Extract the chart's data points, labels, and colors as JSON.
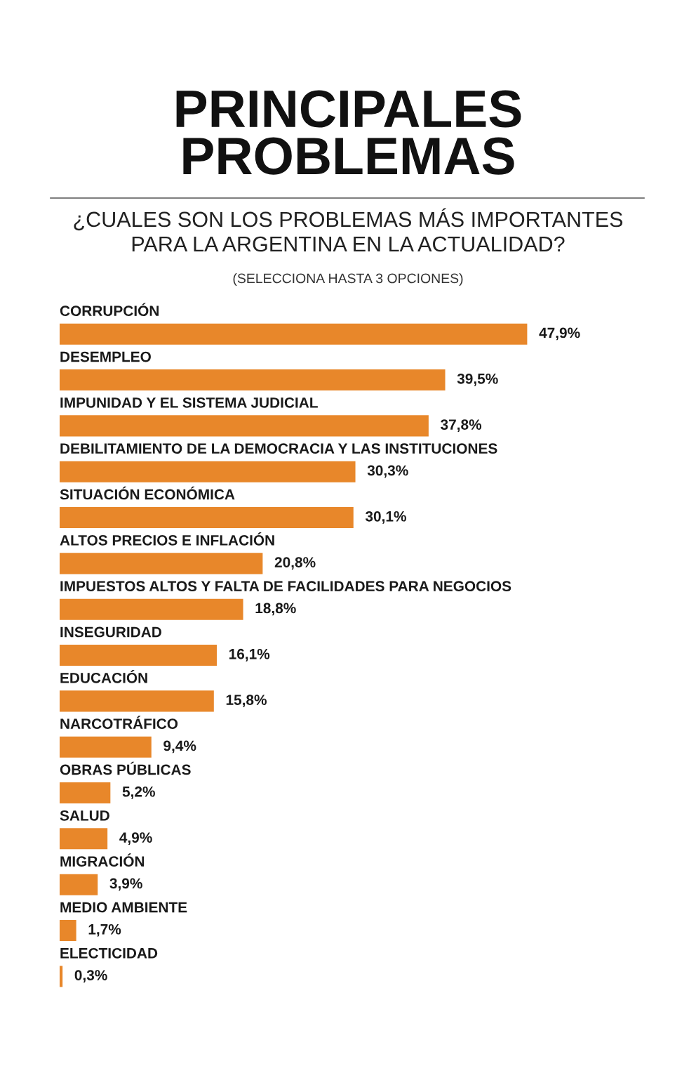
{
  "chart_data": {
    "type": "bar",
    "orientation": "horizontal",
    "title": "PRINCIPALES\nPROBLEMAS",
    "subtitle": "¿CUALES SON LOS PROBLEMAS MÁS IMPORTANTES\nPARA LA ARGENTINA EN LA ACTUALIDAD?",
    "annotations": [
      "(SELECCIONA HASTA 3 OPCIONES)"
    ],
    "categories": [
      "CORRUPCIÓN",
      "DESEMPLEO",
      "IMPUNIDAD Y EL SISTEMA JUDICIAL",
      "DEBILITAMIENTO DE LA DEMOCRACIA Y LAS INSTITUCIONES",
      "SITUACIÓN ECONÓMICA",
      "ALTOS PRECIOS E INFLACIÓN",
      "IMPUESTOS ALTOS Y FALTA DE FACILIDADES PARA NEGOCIOS",
      "INSEGURIDAD",
      "EDUCACIÓN",
      "NARCOTRÁFICO",
      "OBRAS PÚBLICAS",
      "SALUD",
      "MIGRACIÓN",
      "MEDIO AMBIENTE",
      "ELECTICIDAD"
    ],
    "values": [
      47.9,
      39.5,
      37.8,
      30.3,
      30.1,
      20.8,
      18.8,
      16.1,
      15.8,
      9.4,
      5.2,
      4.9,
      3.9,
      1.7,
      0.3
    ],
    "value_labels": [
      "47,9%",
      "39,5%",
      "37,8%",
      "30,3%",
      "30,1%",
      "20,8%",
      "18,8%",
      "16,1%",
      "15,8%",
      "9,4%",
      "5,2%",
      "4,9%",
      "3,9%",
      "1,7%",
      "0,3%"
    ],
    "color": "#e8872a",
    "legend": false
  }
}
